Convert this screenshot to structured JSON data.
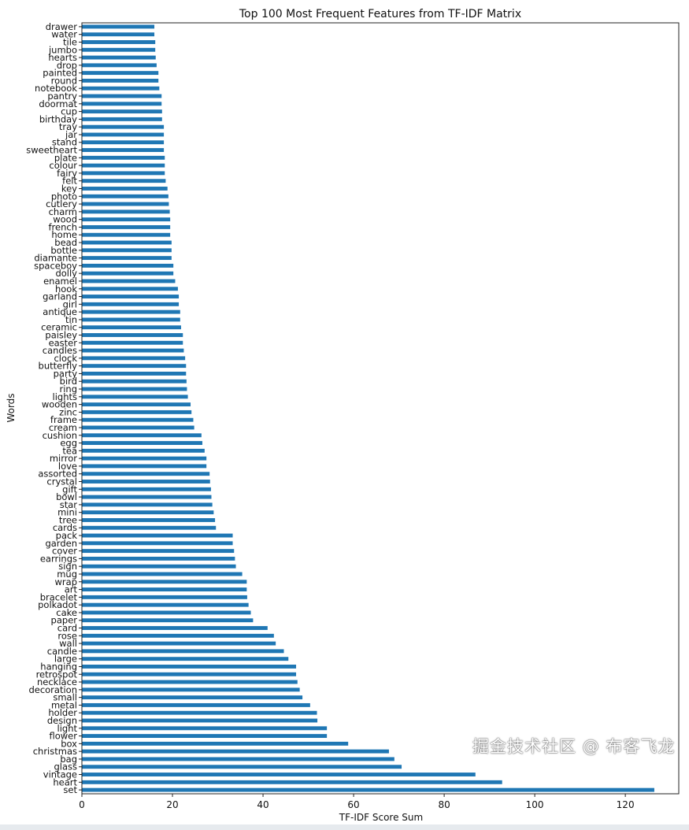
{
  "chart_data": {
    "type": "bar",
    "orientation": "horizontal",
    "title": "Top 100 Most Frequent Features from TF-IDF Matrix",
    "xlabel": "TF-IDF Score Sum",
    "ylabel": "Words",
    "xlim": [
      0,
      131.8
    ],
    "xticks": [
      "0",
      "20",
      "40",
      "60",
      "80",
      "100",
      "120"
    ],
    "grid": false,
    "color": "#1f77b4",
    "categories": [
      "set",
      "heart",
      "vintage",
      "glass",
      "bag",
      "christmas",
      "box",
      "flower",
      "light",
      "design",
      "holder",
      "metal",
      "small",
      "decoration",
      "necklace",
      "retrospot",
      "hanging",
      "large",
      "candle",
      "wall",
      "rose",
      "card",
      "paper",
      "cake",
      "polkadot",
      "bracelet",
      "art",
      "wrap",
      "mug",
      "sign",
      "earrings",
      "cover",
      "garden",
      "pack",
      "cards",
      "tree",
      "mini",
      "star",
      "bowl",
      "gift",
      "crystal",
      "assorted",
      "love",
      "mirror",
      "tea",
      "egg",
      "cushion",
      "cream",
      "frame",
      "zinc",
      "wooden",
      "lights",
      "ring",
      "bird",
      "party",
      "butterfly",
      "clock",
      "candles",
      "easter",
      "paisley",
      "ceramic",
      "tin",
      "antique",
      "girl",
      "garland",
      "hook",
      "enamel",
      "dolly",
      "spaceboy",
      "diamante",
      "bottle",
      "bead",
      "home",
      "french",
      "wood",
      "charm",
      "cutlery",
      "photo",
      "key",
      "felt",
      "fairy",
      "colour",
      "plate",
      "sweetheart",
      "stand",
      "jar",
      "tray",
      "birthday",
      "cup",
      "doormat",
      "pantry",
      "notebook",
      "round",
      "painted",
      "drop",
      "hearts",
      "jumbo",
      "tile",
      "water",
      "drawer"
    ],
    "values": [
      126.4,
      92.8,
      86.9,
      70.6,
      69.0,
      67.8,
      58.8,
      54.1,
      54.1,
      52.0,
      51.9,
      50.4,
      48.7,
      48.1,
      47.6,
      47.3,
      47.3,
      45.6,
      44.6,
      42.8,
      42.4,
      41.0,
      37.8,
      37.3,
      36.8,
      36.5,
      36.4,
      36.4,
      35.4,
      34.0,
      33.8,
      33.6,
      33.3,
      33.3,
      29.6,
      29.4,
      29.1,
      28.8,
      28.6,
      28.5,
      28.3,
      28.2,
      27.5,
      27.5,
      27.1,
      26.6,
      26.4,
      24.8,
      24.6,
      24.2,
      24.0,
      23.4,
      23.2,
      23.1,
      23.0,
      23.0,
      22.8,
      22.5,
      22.3,
      22.3,
      21.9,
      21.7,
      21.7,
      21.4,
      21.4,
      21.2,
      20.6,
      20.2,
      20.2,
      19.8,
      19.8,
      19.8,
      19.5,
      19.5,
      19.5,
      19.4,
      19.2,
      19.1,
      18.9,
      18.5,
      18.3,
      18.3,
      18.3,
      18.1,
      18.1,
      18.1,
      18.1,
      17.7,
      17.7,
      17.6,
      17.6,
      17.1,
      16.9,
      16.9,
      16.5,
      16.3,
      16.2,
      16.2,
      16.0,
      16.0
    ]
  },
  "watermark": "掘金技术社区 @ 布客飞龙"
}
